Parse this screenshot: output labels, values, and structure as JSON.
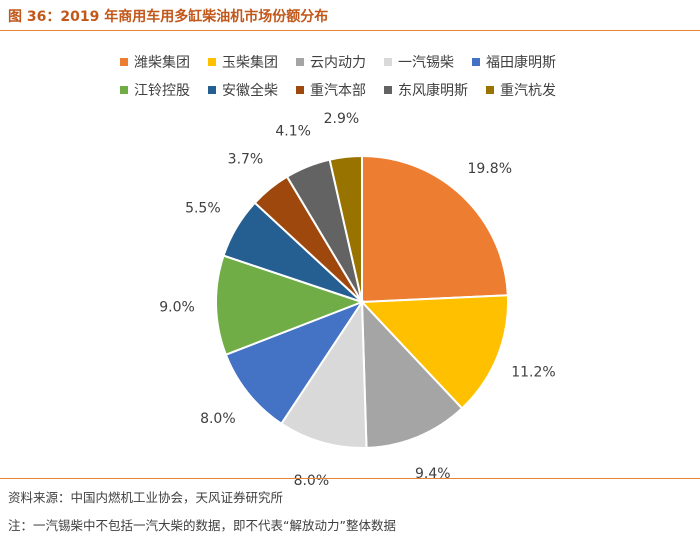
{
  "figure": {
    "title": "图 36：2019 年商用车用多缸柴油机市场份额分布"
  },
  "chart_data": {
    "type": "pie",
    "title": "",
    "start_angle_deg": 0,
    "direction": "clockwise",
    "slices": [
      {
        "name": "潍柴集团",
        "value": 19.8,
        "label": "19.8%",
        "color": "#ED7D31"
      },
      {
        "name": "玉柴集团",
        "value": 11.2,
        "label": "11.2%",
        "color": "#FFC000"
      },
      {
        "name": "云内动力",
        "value": 9.4,
        "label": "9.4%",
        "color": "#A5A5A5"
      },
      {
        "name": "一汽锡柴",
        "value": 8.0,
        "label": "8.0%",
        "color": "#D9D9D9"
      },
      {
        "name": "福田康明斯",
        "value": 8.0,
        "label": "8.0%",
        "color": "#4472C4"
      },
      {
        "name": "江铃控股",
        "value": 9.0,
        "label": "9.0%",
        "color": "#70AD47"
      },
      {
        "name": "安徽全柴",
        "value": 5.5,
        "label": "5.5%",
        "color": "#255E91"
      },
      {
        "name": "重汽本部",
        "value": 3.7,
        "label": "3.7%",
        "color": "#9E480E"
      },
      {
        "name": "东风康明斯",
        "value": 4.1,
        "label": "4.1%",
        "color": "#636363"
      },
      {
        "name": "重汽杭发",
        "value": 2.9,
        "label": "2.9%",
        "color": "#997300"
      }
    ],
    "legend_position": "top",
    "legend_rows": [
      [
        0,
        1,
        2,
        3,
        4
      ],
      [
        5,
        6,
        7,
        8,
        9
      ]
    ]
  },
  "footer": {
    "source": "资料来源：中国内燃机工业协会，天风证券研究所",
    "note": "注：一汽锡柴中不包括一汽大柴的数据，即不代表“解放动力”整体数据"
  }
}
